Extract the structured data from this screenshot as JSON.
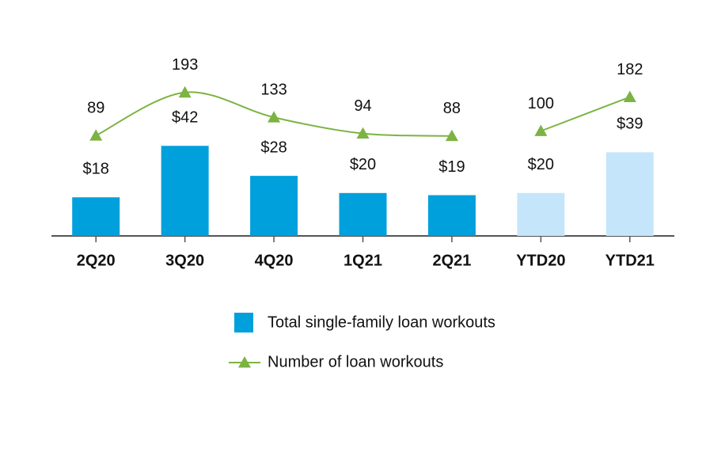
{
  "chart_data": {
    "type": "bar",
    "categories": [
      "2Q20",
      "3Q20",
      "4Q20",
      "1Q21",
      "2Q21",
      "YTD20",
      "YTD21"
    ],
    "ylim": [
      0,
      110
    ],
    "y2lim": [
      -153,
      416
    ],
    "series": [
      {
        "name": "Total single-family loan workouts",
        "type": "bar",
        "colors": [
          "#00a0dc",
          "#00a0dc",
          "#00a0dc",
          "#00a0dc",
          "#00a0dc",
          "#c5e6fa",
          "#c5e6fa"
        ],
        "values": [
          18,
          42,
          28,
          20,
          19,
          20,
          39
        ],
        "value_labels": [
          "$18",
          "$42",
          "$28",
          "$20",
          "$19",
          "$20",
          "$39"
        ]
      },
      {
        "name": "Number of loan workouts",
        "type": "line",
        "axis": "y2",
        "color": "#7cb342",
        "values": [
          89,
          193,
          133,
          94,
          88,
          100,
          182
        ],
        "break_before": 5
      }
    ]
  }
}
